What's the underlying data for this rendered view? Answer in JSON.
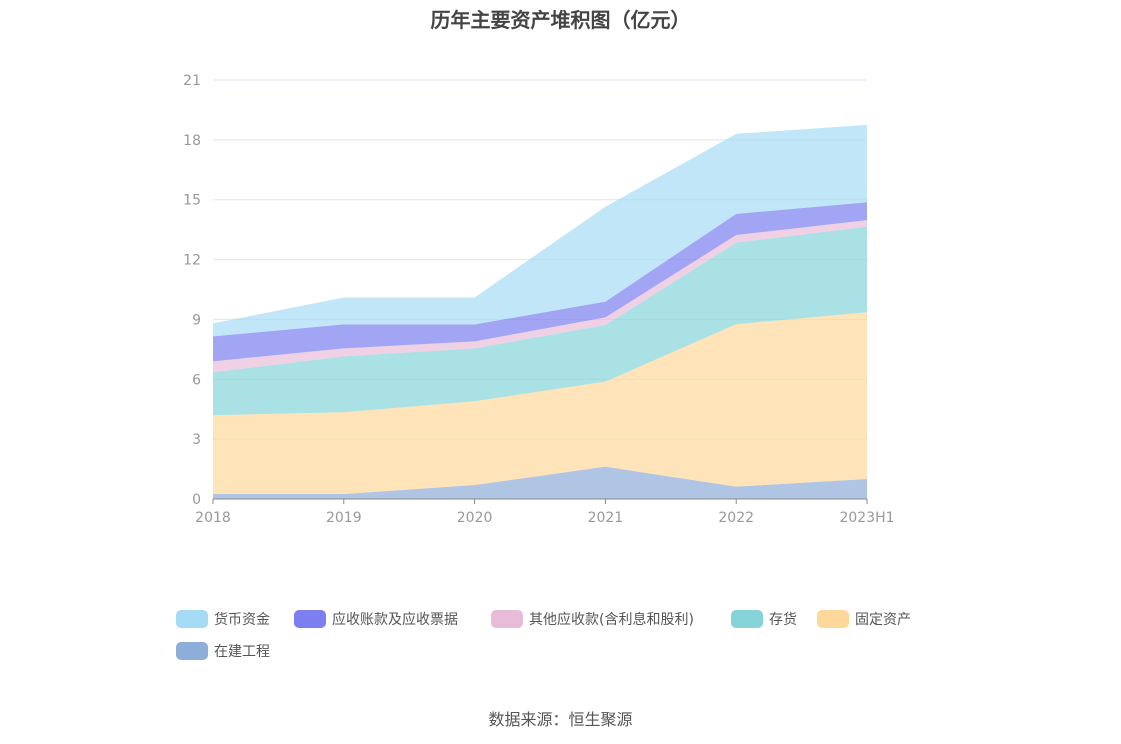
{
  "chart_data": {
    "type": "area",
    "stacked": true,
    "title": "历年主要资产堆积图（亿元）",
    "x": [
      "2018",
      "2019",
      "2020",
      "2021",
      "2022",
      "2023H1"
    ],
    "ylim": [
      0,
      21
    ],
    "yticks": [
      0,
      3,
      6,
      9,
      12,
      15,
      18,
      21
    ],
    "grid": true,
    "legend_position": "bottom",
    "series": [
      {
        "name": "在建工程",
        "color": "#8fadd9",
        "values": [
          0.25,
          0.25,
          0.7,
          1.62,
          0.62,
          1.0
        ]
      },
      {
        "name": "固定资产",
        "color": "#fdd89a",
        "values": [
          3.95,
          4.1,
          4.2,
          4.26,
          8.14,
          8.36
        ]
      },
      {
        "name": "存货",
        "color": "#86d4d8",
        "values": [
          2.15,
          2.8,
          2.65,
          2.84,
          4.09,
          4.29
        ]
      },
      {
        "name": "其他应收款(含利息和股利)",
        "color": "#e8bcd9",
        "values": [
          0.55,
          0.4,
          0.35,
          0.38,
          0.38,
          0.33
        ]
      },
      {
        "name": "应收账款及应收票据",
        "color": "#7b7ff0",
        "values": [
          1.25,
          1.2,
          0.85,
          0.79,
          1.06,
          0.89
        ]
      },
      {
        "name": "货币资金",
        "color": "#a5dcf5",
        "values": [
          0.65,
          1.35,
          1.35,
          4.76,
          4.01,
          3.88
        ]
      }
    ]
  },
  "legend_order": [
    5,
    4,
    3,
    2,
    1,
    0
  ],
  "source": "数据来源：恒生聚源"
}
